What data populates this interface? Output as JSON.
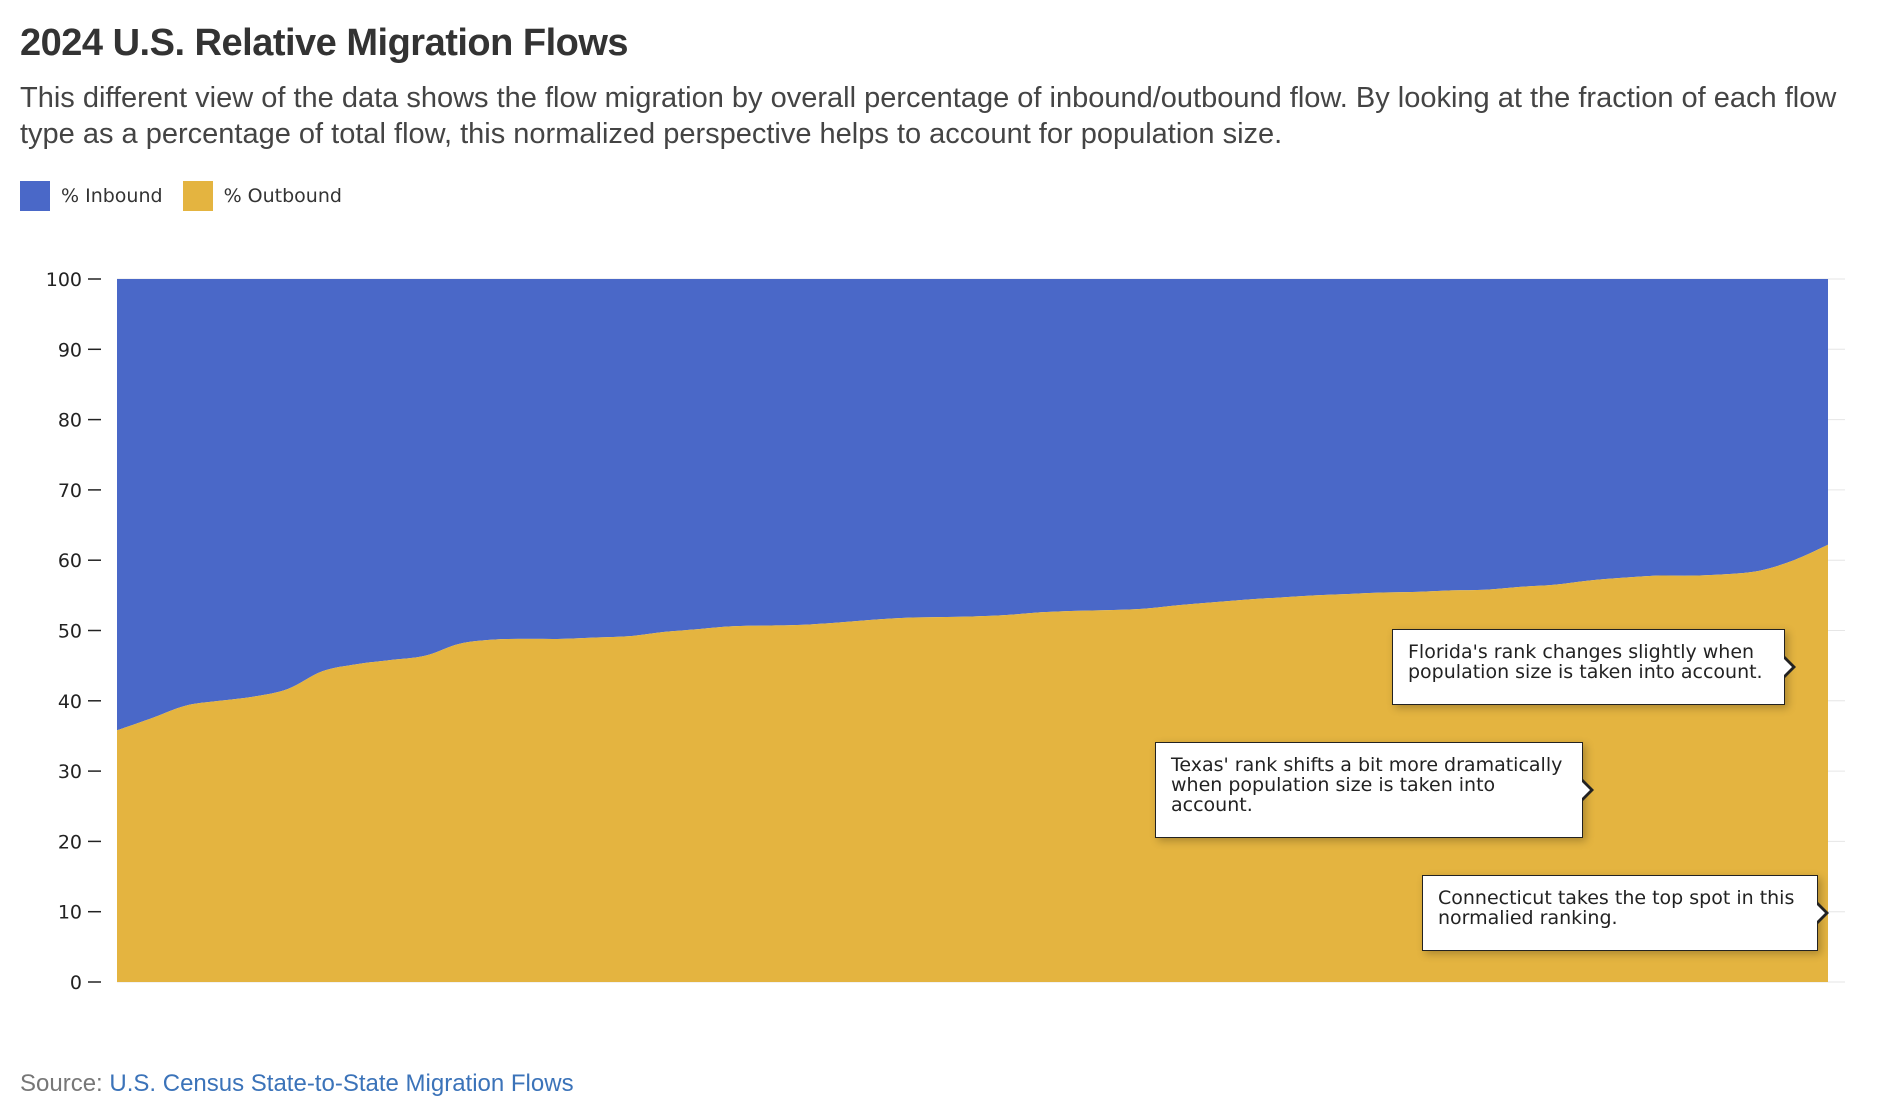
{
  "title": "2024 U.S. Relative Migration Flows",
  "subtitle": "This different view of the data shows the flow migration by overall percentage of inbound/outbound flow. By looking at the fraction of each flow type as a percentage of total flow, this normalized perspective helps to account for population size.",
  "legend": [
    {
      "label": "% Inbound",
      "color": "#4a68c8"
    },
    {
      "label": "% Outbound",
      "color": "#e4b440"
    }
  ],
  "source": {
    "prefix": "Source:",
    "link_text": "U.S. Census State-to-State Migration Flows"
  },
  "annotations": [
    {
      "text": "Florida's rank changes slightly when population size is taken into account."
    },
    {
      "text": "Texas' rank shifts a bit more dramatically when population size is taken into account."
    },
    {
      "text": "Connecticut takes the top spot in this normalied ranking."
    }
  ],
  "chart_data": {
    "type": "area",
    "stacked": true,
    "normalized": true,
    "ylim": [
      0,
      100
    ],
    "yticks": [
      0,
      10,
      20,
      30,
      40,
      50,
      60,
      70,
      80,
      90,
      100
    ],
    "grid": true,
    "legend_position": "top-left",
    "x_count": 51,
    "series": [
      {
        "name": "% Outbound",
        "color": "#e4b440",
        "values": [
          35.8,
          37.5,
          39.3,
          40.0,
          40.6,
          41.7,
          44.2,
          45.2,
          45.8,
          46.4,
          48.1,
          48.7,
          48.8,
          48.8,
          49.0,
          49.2,
          49.8,
          50.2,
          50.6,
          50.7,
          50.8,
          51.1,
          51.5,
          51.8,
          51.9,
          52.0,
          52.2,
          52.6,
          52.8,
          52.9,
          53.1,
          53.6,
          54.0,
          54.4,
          54.7,
          55.0,
          55.2,
          55.4,
          55.5,
          55.7,
          55.8,
          56.2,
          56.5,
          57.1,
          57.5,
          57.8,
          57.8,
          58.0,
          58.5,
          60.0,
          62.2
        ]
      },
      {
        "name": "% Inbound",
        "color": "#4a68c8",
        "values": [
          64.2,
          62.5,
          60.7,
          60.0,
          59.4,
          58.3,
          55.8,
          54.8,
          54.2,
          53.6,
          51.9,
          51.3,
          51.2,
          51.2,
          51.0,
          50.8,
          50.2,
          49.8,
          49.4,
          49.3,
          49.2,
          48.9,
          48.5,
          48.2,
          48.1,
          48.0,
          47.8,
          47.4,
          47.2,
          47.1,
          46.9,
          46.4,
          46.0,
          45.6,
          45.3,
          45.0,
          44.8,
          44.6,
          44.5,
          44.3,
          44.2,
          43.8,
          43.5,
          42.9,
          42.5,
          42.2,
          42.2,
          42.0,
          41.5,
          40.0,
          37.8
        ]
      }
    ]
  }
}
